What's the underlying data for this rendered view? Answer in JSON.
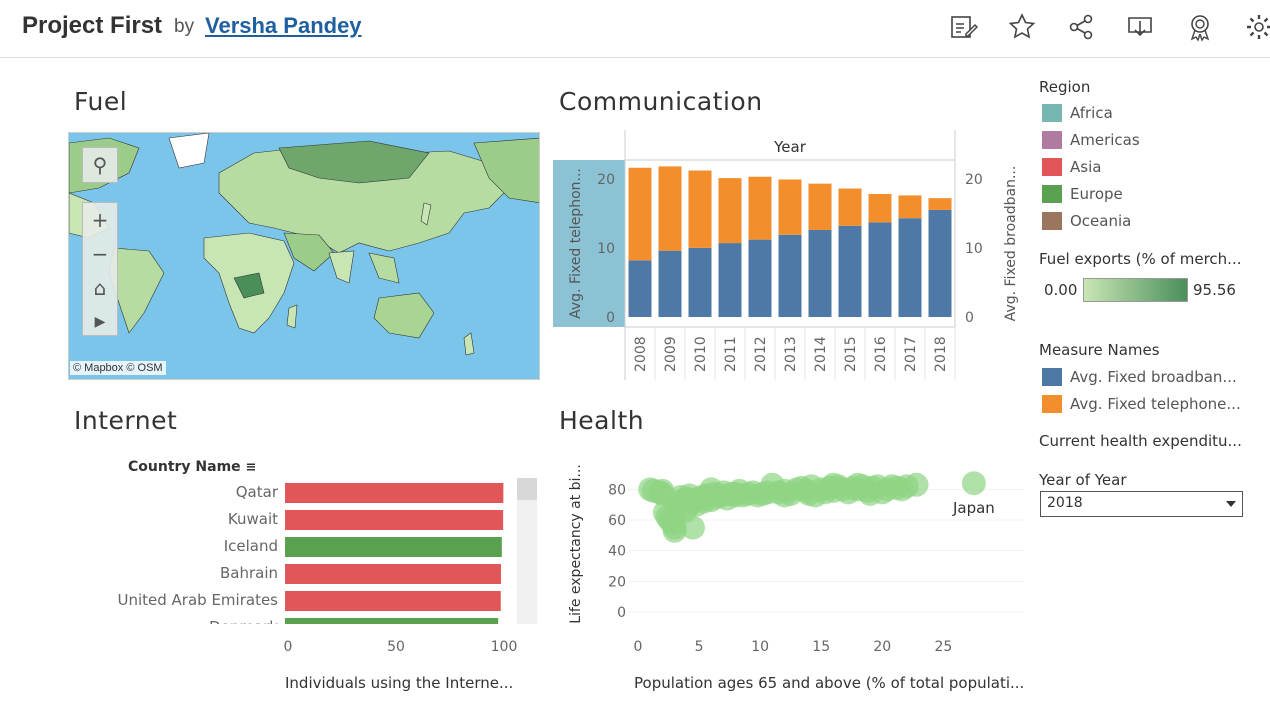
{
  "header": {
    "title": "Project First",
    "by": "by",
    "author": "Versha Pandey",
    "icons": [
      "edit-icon",
      "star-icon",
      "share-icon",
      "download-icon",
      "badge-icon",
      "gear-icon"
    ]
  },
  "sections": {
    "fuel": "Fuel",
    "communication": "Communication",
    "internet": "Internet",
    "health": "Health"
  },
  "map": {
    "attribution_mapbox": "© Mapbox",
    "attribution_osm": "© OSM",
    "colors": {
      "water": "#7cc5ea",
      "low": "#c8e6b4",
      "high": "#4a8f5a"
    }
  },
  "legend": {
    "region_title": "Region",
    "regions": [
      {
        "label": "Africa",
        "color": "#76b7b2"
      },
      {
        "label": "Americas",
        "color": "#b07aa1"
      },
      {
        "label": "Asia",
        "color": "#e15759"
      },
      {
        "label": "Europe",
        "color": "#59a14f"
      },
      {
        "label": "Oceania",
        "color": "#9c755f"
      }
    ],
    "fuel_title": "Fuel exports (% of merch...",
    "fuel_min": "0.00",
    "fuel_max": "95.56",
    "measure_title": "Measure Names",
    "measures": [
      {
        "label": "Avg. Fixed broadban...",
        "color": "#4e79a7"
      },
      {
        "label": "Avg. Fixed telephone...",
        "color": "#f28e2b"
      }
    ],
    "health_title": "Current health expenditu...",
    "year_title": "Year of Year",
    "year_value": "2018"
  },
  "chart_data": [
    {
      "type": "bar",
      "name": "communication",
      "title": "Year",
      "categories": [
        "2008",
        "2009",
        "2010",
        "2011",
        "2012",
        "2013",
        "2014",
        "2015",
        "2016",
        "2017",
        "2018"
      ],
      "series": [
        {
          "name": "Avg. Fixed broadban...",
          "values": [
            8.2,
            9.6,
            10.0,
            10.7,
            11.2,
            11.9,
            12.6,
            13.2,
            13.7,
            14.3,
            15.5
          ]
        },
        {
          "name": "Avg. Fixed telephon...",
          "values": [
            13.4,
            12.2,
            11.2,
            9.4,
            9.1,
            8.0,
            6.7,
            5.4,
            4.1,
            3.3,
            1.7
          ]
        }
      ],
      "ylabel_left": "Avg. Fixed telephon...",
      "ylabel_right": "Avg. Fixed broadban...",
      "ylim": [
        0,
        22
      ],
      "yticks": [
        0,
        10,
        20
      ],
      "stacked": true
    },
    {
      "type": "bar",
      "name": "internet",
      "orientation": "horizontal",
      "header": "Country Name",
      "categories": [
        "Qatar",
        "Kuwait",
        "Iceland",
        "Bahrain",
        "United Arab Emirates",
        "Denmark"
      ],
      "values": [
        99.7,
        99.6,
        99.0,
        98.6,
        98.5,
        97.3
      ],
      "regions": [
        "Asia",
        "Asia",
        "Europe",
        "Asia",
        "Asia",
        "Europe"
      ],
      "xlabel": "Individuals using the Interne...",
      "xlim": [
        0,
        100
      ],
      "xticks": [
        0,
        50,
        100
      ]
    },
    {
      "type": "scatter",
      "name": "health",
      "xlabel": "Population ages 65 and above (% of total populati...",
      "ylabel": "Life expectancy at bi...",
      "xlim": [
        0,
        28
      ],
      "ylim": [
        0,
        90
      ],
      "xticks": [
        0,
        5,
        10,
        15,
        20,
        25
      ],
      "yticks": [
        0,
        20,
        40,
        60,
        80
      ],
      "annotation": {
        "text": "Japan",
        "x": 27.5,
        "y": 84
      },
      "points": [
        [
          1,
          80
        ],
        [
          1.3,
          79
        ],
        [
          1.8,
          78
        ],
        [
          2,
          77
        ],
        [
          2.2,
          65
        ],
        [
          2.4,
          62
        ],
        [
          2.6,
          60
        ],
        [
          2.8,
          58
        ],
        [
          3,
          55
        ],
        [
          3,
          63
        ],
        [
          3.2,
          69
        ],
        [
          3.4,
          72
        ],
        [
          3.5,
          75
        ],
        [
          3.7,
          68
        ],
        [
          3.9,
          66
        ],
        [
          4,
          74
        ],
        [
          4.2,
          76
        ],
        [
          4.4,
          71
        ],
        [
          4.6,
          73
        ],
        [
          4.8,
          70
        ],
        [
          5,
          74
        ],
        [
          5.2,
          75
        ],
        [
          5.4,
          72
        ],
        [
          5.6,
          76
        ],
        [
          6,
          73
        ],
        [
          6.2,
          77
        ],
        [
          6.5,
          75
        ],
        [
          6.8,
          76
        ],
        [
          7,
          78
        ],
        [
          7.3,
          74
        ],
        [
          7.6,
          77
        ],
        [
          8,
          76
        ],
        [
          8.3,
          79
        ],
        [
          8.6,
          76
        ],
        [
          9,
          77
        ],
        [
          9.4,
          78
        ],
        [
          9.8,
          76
        ],
        [
          10.2,
          77
        ],
        [
          10.6,
          78
        ],
        [
          11,
          83
        ],
        [
          11.5,
          78
        ],
        [
          12,
          79
        ],
        [
          12.5,
          77
        ],
        [
          13,
          80
        ],
        [
          13.4,
          81
        ],
        [
          13.8,
          79
        ],
        [
          14.2,
          82
        ],
        [
          14.5,
          76
        ],
        [
          15,
          80
        ],
        [
          15.3,
          78
        ],
        [
          15.7,
          81
        ],
        [
          16,
          79
        ],
        [
          16.4,
          82
        ],
        [
          16.8,
          80
        ],
        [
          17.2,
          78
        ],
        [
          17.6,
          81
        ],
        [
          18,
          80
        ],
        [
          18.4,
          82
        ],
        [
          18.8,
          79
        ],
        [
          19.2,
          81
        ],
        [
          19.6,
          82
        ],
        [
          20,
          78
        ],
        [
          20.4,
          80
        ],
        [
          20.8,
          82
        ],
        [
          21.2,
          81
        ],
        [
          21.6,
          80
        ],
        [
          22,
          82
        ],
        [
          22.8,
          83
        ],
        [
          27.5,
          84
        ],
        [
          3,
          53
        ],
        [
          4.5,
          55
        ],
        [
          2,
          79
        ],
        [
          6,
          80
        ],
        [
          8,
          77
        ],
        [
          12,
          76
        ],
        [
          14,
          77
        ],
        [
          16,
          83
        ],
        [
          18,
          83
        ],
        [
          19,
          77
        ]
      ]
    }
  ]
}
